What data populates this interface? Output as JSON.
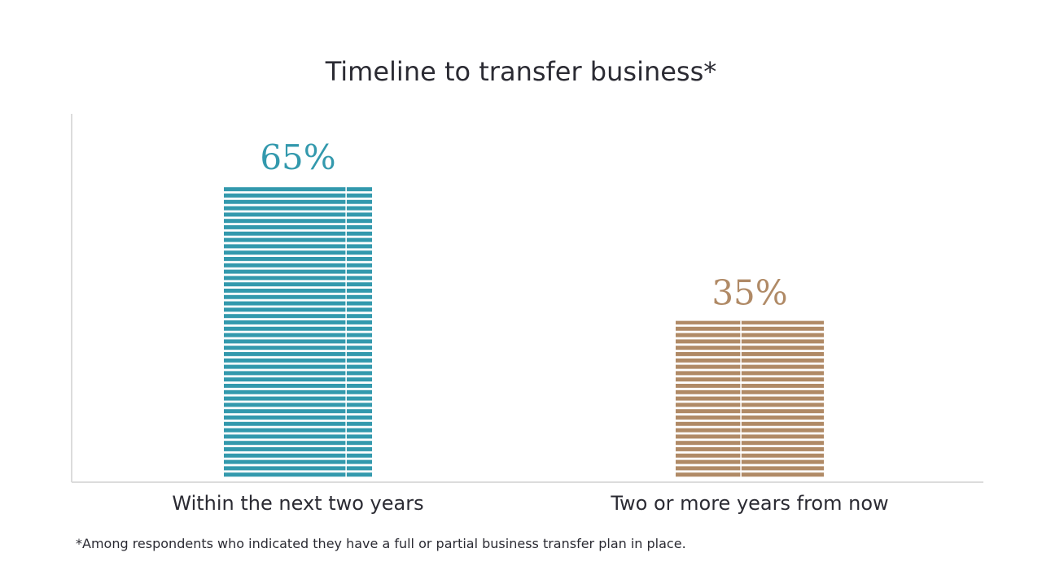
{
  "chart_data": {
    "type": "bar",
    "title": "Timeline to transfer business*",
    "categories": [
      "Within the next two years",
      "Two or more years from now"
    ],
    "values": [
      65,
      35
    ],
    "value_labels": [
      "65%",
      "35%"
    ],
    "colors": [
      "#3399ad",
      "#b08a66"
    ],
    "ylim": [
      0,
      70
    ],
    "grid": false,
    "legend": "none"
  },
  "footnote": "*Among respondents who indicated they have a full or partial business transfer plan in place."
}
